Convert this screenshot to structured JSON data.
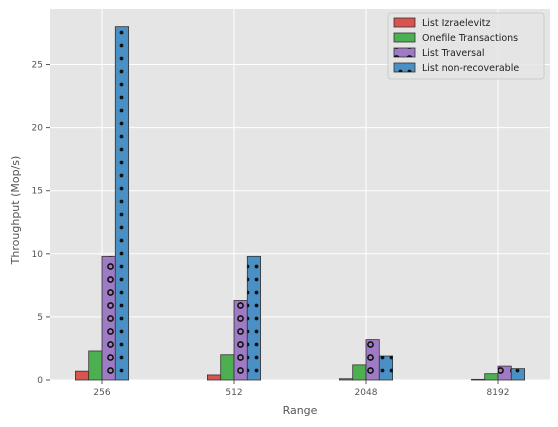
{
  "chart_data": {
    "type": "bar",
    "xlabel": "Range",
    "ylabel": "Throughput (Mop/s)",
    "categories": [
      "256",
      "512",
      "2048",
      "8192"
    ],
    "ylim": [
      0,
      29.4
    ],
    "yticks": [
      0,
      5,
      10,
      15,
      20,
      25
    ],
    "grid": true,
    "legend_position": "top-right",
    "series": [
      {
        "name": "List Izraelevitz",
        "values": [
          0.7,
          0.4,
          0.1,
          0.05
        ],
        "color": "#d9534f",
        "hatch": "none"
      },
      {
        "name": "Onefile Transactions",
        "values": [
          2.3,
          2.0,
          1.2,
          0.5
        ],
        "color": "#4caf50",
        "hatch": "none"
      },
      {
        "name": "List Traversal",
        "values": [
          9.8,
          6.3,
          3.2,
          1.1
        ],
        "color": "#9e7bc4",
        "hatch": "rings"
      },
      {
        "name": "List non-recoverable",
        "values": [
          28.0,
          9.8,
          1.9,
          0.9
        ],
        "color": "#4a90c4",
        "hatch": "dots"
      }
    ]
  }
}
